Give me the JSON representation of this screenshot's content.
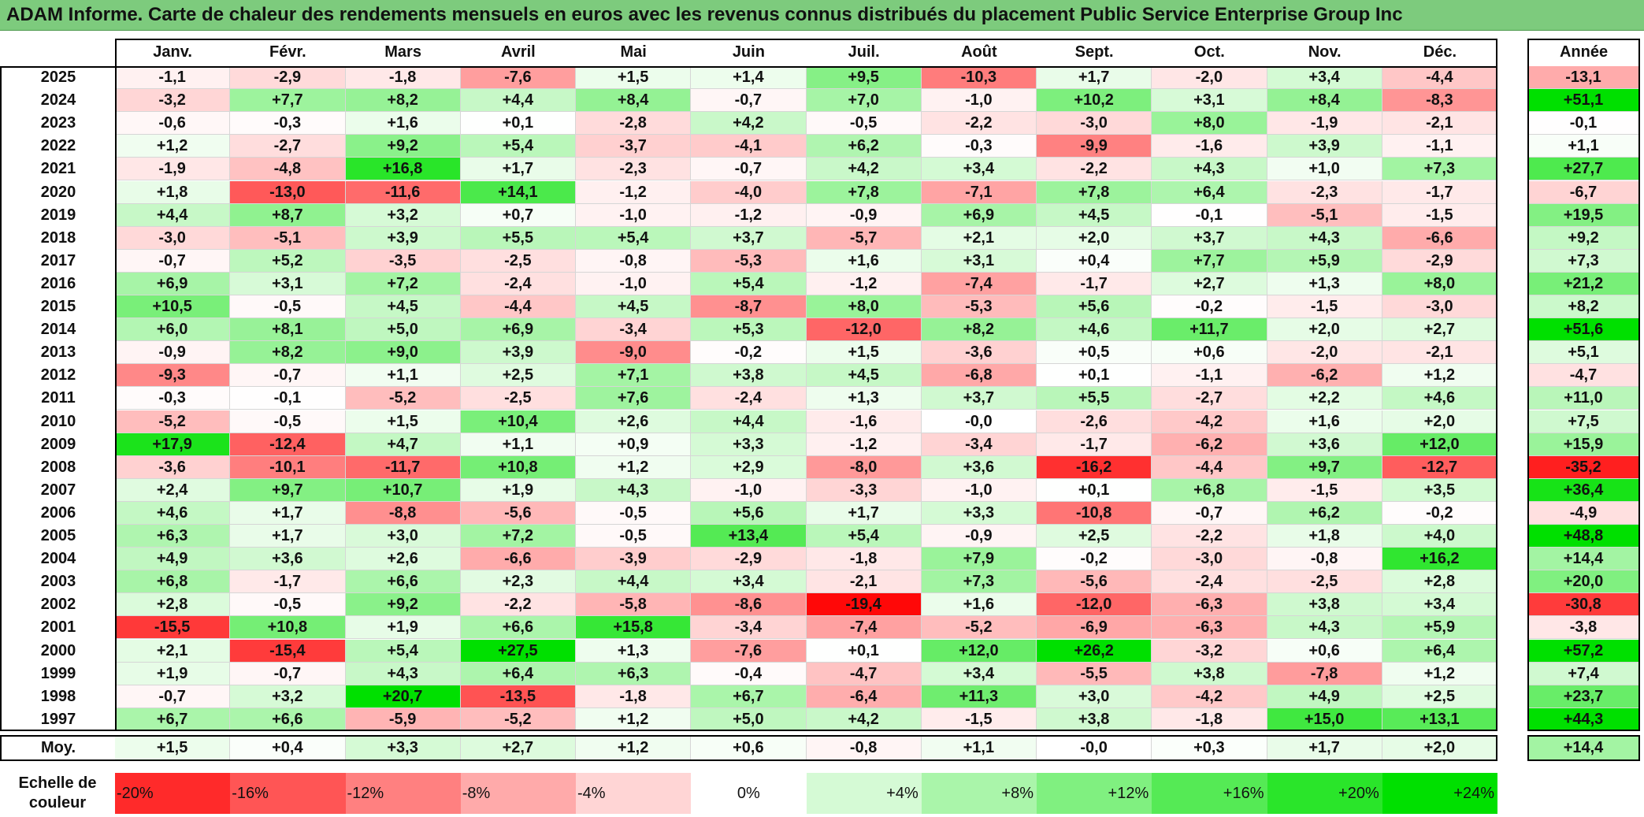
{
  "title": "ADAM Informe. Carte de chaleur des rendements mensuels en euros avec les revenus connus distribués du placement Public Service Enterprise Group Inc",
  "colors": {
    "title_bg": "#7dcb7d",
    "max_green": "#00e000",
    "max_red": "#ff0000",
    "neutral": "#ffffff"
  },
  "chart_data": {
    "type": "heatmap",
    "title": "ADAM Informe. Carte de chaleur des rendements mensuels en euros avec les revenus connus distribués du placement Public Service Enterprise Group Inc",
    "months": [
      "Janv.",
      "Févr.",
      "Mars",
      "Avril",
      "Mai",
      "Juin",
      "Juil.",
      "Août",
      "Sept.",
      "Oct.",
      "Nov.",
      "Déc."
    ],
    "year_header": "Année",
    "rows": [
      {
        "year": "2025",
        "values": [
          "-1,1",
          "-2,9",
          "-1,8",
          "-7,6",
          "+1,5",
          "+1,4",
          "+9,5",
          "-10,3",
          "+1,7",
          "-2,0",
          "+3,4",
          "-4,4"
        ],
        "annual": "-13,1"
      },
      {
        "year": "2024",
        "values": [
          "-3,2",
          "+7,7",
          "+8,2",
          "+4,4",
          "+8,4",
          "-0,7",
          "+7,0",
          "-1,0",
          "+10,2",
          "+3,1",
          "+8,4",
          "-8,3"
        ],
        "annual": "+51,1"
      },
      {
        "year": "2023",
        "values": [
          "-0,6",
          "-0,3",
          "+1,6",
          "+0,1",
          "-2,8",
          "+4,2",
          "-0,5",
          "-2,2",
          "-3,0",
          "+8,0",
          "-1,9",
          "-2,1"
        ],
        "annual": "-0,1"
      },
      {
        "year": "2022",
        "values": [
          "+1,2",
          "-2,7",
          "+9,2",
          "+5,4",
          "-3,7",
          "-4,1",
          "+6,2",
          "-0,3",
          "-9,9",
          "-1,6",
          "+3,9",
          "-1,1"
        ],
        "annual": "+1,1"
      },
      {
        "year": "2021",
        "values": [
          "-1,9",
          "-4,8",
          "+16,8",
          "+1,7",
          "-2,3",
          "-0,7",
          "+4,2",
          "+3,4",
          "-2,2",
          "+4,3",
          "+1,0",
          "+7,3"
        ],
        "annual": "+27,7"
      },
      {
        "year": "2020",
        "values": [
          "+1,8",
          "-13,0",
          "-11,6",
          "+14,1",
          "-1,2",
          "-4,0",
          "+7,8",
          "-7,1",
          "+7,8",
          "+6,4",
          "-2,3",
          "-1,7"
        ],
        "annual": "-6,7"
      },
      {
        "year": "2019",
        "values": [
          "+4,4",
          "+8,7",
          "+3,2",
          "+0,7",
          "-1,0",
          "-1,2",
          "-0,9",
          "+6,9",
          "+4,5",
          "-0,1",
          "-5,1",
          "-1,5"
        ],
        "annual": "+19,5"
      },
      {
        "year": "2018",
        "values": [
          "-3,0",
          "-5,1",
          "+3,9",
          "+5,5",
          "+5,4",
          "+3,7",
          "-5,7",
          "+2,1",
          "+2,0",
          "+3,7",
          "+4,3",
          "-6,6"
        ],
        "annual": "+9,2"
      },
      {
        "year": "2017",
        "values": [
          "-0,7",
          "+5,2",
          "-3,5",
          "-2,5",
          "-0,8",
          "-5,3",
          "+1,6",
          "+3,1",
          "+0,4",
          "+7,7",
          "+5,9",
          "-2,9"
        ],
        "annual": "+7,3"
      },
      {
        "year": "2016",
        "values": [
          "+6,9",
          "+3,1",
          "+7,2",
          "-2,4",
          "-1,0",
          "+5,4",
          "-1,2",
          "-7,4",
          "-1,7",
          "+2,7",
          "+1,3",
          "+8,0"
        ],
        "annual": "+21,2"
      },
      {
        "year": "2015",
        "values": [
          "+10,5",
          "-0,5",
          "+4,5",
          "-4,4",
          "+4,5",
          "-8,7",
          "+8,0",
          "-5,3",
          "+5,6",
          "-0,2",
          "-1,5",
          "-3,0"
        ],
        "annual": "+8,2"
      },
      {
        "year": "2014",
        "values": [
          "+6,0",
          "+8,1",
          "+5,0",
          "+6,9",
          "-3,4",
          "+5,3",
          "-12,0",
          "+8,2",
          "+4,6",
          "+11,7",
          "+2,0",
          "+2,7"
        ],
        "annual": "+51,6"
      },
      {
        "year": "2013",
        "values": [
          "-0,9",
          "+8,2",
          "+9,0",
          "+3,9",
          "-9,0",
          "-0,2",
          "+1,5",
          "-3,6",
          "+0,5",
          "+0,6",
          "-2,0",
          "-2,1"
        ],
        "annual": "+5,1"
      },
      {
        "year": "2012",
        "values": [
          "-9,3",
          "-0,7",
          "+1,1",
          "+2,5",
          "+7,1",
          "+3,8",
          "+4,5",
          "-6,8",
          "+0,1",
          "-1,1",
          "-6,2",
          "+1,2"
        ],
        "annual": "-4,7"
      },
      {
        "year": "2011",
        "values": [
          "-0,3",
          "-0,1",
          "-5,2",
          "-2,5",
          "+7,6",
          "-2,4",
          "+1,3",
          "+3,7",
          "+5,5",
          "-2,7",
          "+2,2",
          "+4,6"
        ],
        "annual": "+11,0"
      },
      {
        "year": "2010",
        "values": [
          "-5,2",
          "-0,5",
          "+1,5",
          "+10,4",
          "+2,6",
          "+4,4",
          "-1,6",
          "-0,0",
          "-2,6",
          "-4,2",
          "+1,6",
          "+2,0"
        ],
        "annual": "+7,5"
      },
      {
        "year": "2009",
        "values": [
          "+17,9",
          "-12,4",
          "+4,7",
          "+1,1",
          "+0,9",
          "+3,3",
          "-1,2",
          "-3,4",
          "-1,7",
          "-6,2",
          "+3,6",
          "+12,0"
        ],
        "annual": "+15,9"
      },
      {
        "year": "2008",
        "values": [
          "-3,6",
          "-10,1",
          "-11,7",
          "+10,8",
          "+1,2",
          "+2,9",
          "-8,0",
          "+3,6",
          "-16,2",
          "-4,4",
          "+9,7",
          "-12,7"
        ],
        "annual": "-35,2"
      },
      {
        "year": "2007",
        "values": [
          "+2,4",
          "+9,7",
          "+10,7",
          "+1,9",
          "+4,3",
          "-1,0",
          "-3,3",
          "-1,0",
          "+0,1",
          "+6,8",
          "-1,5",
          "+3,5"
        ],
        "annual": "+36,4"
      },
      {
        "year": "2006",
        "values": [
          "+4,6",
          "+1,7",
          "-8,8",
          "-5,6",
          "-0,5",
          "+5,6",
          "+1,7",
          "+3,3",
          "-10,8",
          "-0,7",
          "+6,2",
          "-0,2"
        ],
        "annual": "-4,9"
      },
      {
        "year": "2005",
        "values": [
          "+6,3",
          "+1,7",
          "+3,0",
          "+7,2",
          "-0,5",
          "+13,4",
          "+5,4",
          "-0,9",
          "+2,5",
          "-2,2",
          "+1,8",
          "+4,0"
        ],
        "annual": "+48,8"
      },
      {
        "year": "2004",
        "values": [
          "+4,9",
          "+3,6",
          "+2,6",
          "-6,6",
          "-3,9",
          "-2,9",
          "-1,8",
          "+7,9",
          "-0,2",
          "-3,0",
          "-0,8",
          "+16,2"
        ],
        "annual": "+14,4"
      },
      {
        "year": "2003",
        "values": [
          "+6,8",
          "-1,7",
          "+6,6",
          "+2,3",
          "+4,4",
          "+3,4",
          "-2,1",
          "+7,3",
          "-5,6",
          "-2,4",
          "-2,5",
          "+2,8"
        ],
        "annual": "+20,0"
      },
      {
        "year": "2002",
        "values": [
          "+2,8",
          "-0,5",
          "+9,2",
          "-2,2",
          "-5,8",
          "-8,6",
          "-19,4",
          "+1,6",
          "-12,0",
          "-6,3",
          "+3,8",
          "+3,4"
        ],
        "annual": "-30,8"
      },
      {
        "year": "2001",
        "values": [
          "-15,5",
          "+10,8",
          "+1,9",
          "+6,6",
          "+15,8",
          "-3,4",
          "-7,4",
          "-5,2",
          "-6,9",
          "-6,3",
          "+4,3",
          "+5,9"
        ],
        "annual": "-3,8"
      },
      {
        "year": "2000",
        "values": [
          "+2,1",
          "-15,4",
          "+5,4",
          "+27,5",
          "+1,3",
          "-7,6",
          "+0,1",
          "+12,0",
          "+26,2",
          "-3,2",
          "+0,6",
          "+6,4"
        ],
        "annual": "+57,2"
      },
      {
        "year": "1999",
        "values": [
          "+1,9",
          "-0,7",
          "+4,3",
          "+6,4",
          "+6,3",
          "-0,4",
          "-4,7",
          "+3,4",
          "-5,5",
          "+3,8",
          "-7,8",
          "+1,2"
        ],
        "annual": "+7,4"
      },
      {
        "year": "1998",
        "values": [
          "-0,7",
          "+3,2",
          "+20,7",
          "-13,5",
          "-1,8",
          "+6,7",
          "-6,4",
          "+11,3",
          "+3,0",
          "-4,2",
          "+4,9",
          "+2,5"
        ],
        "annual": "+23,7"
      },
      {
        "year": "1997",
        "values": [
          "+6,7",
          "+6,6",
          "-5,9",
          "-5,2",
          "+1,2",
          "+5,0",
          "+4,2",
          "-1,5",
          "+3,8",
          "-1,8",
          "+15,0",
          "+13,1"
        ],
        "annual": "+44,3"
      }
    ],
    "average": {
      "label": "Moy.",
      "values": [
        "+1,5",
        "+0,4",
        "+3,3",
        "+2,7",
        "+1,2",
        "+0,6",
        "-0,8",
        "+1,1",
        "-0,0",
        "+0,3",
        "+1,7",
        "+2,0"
      ],
      "annual": "+14,4"
    },
    "legend": {
      "label": "Echelle de couleur",
      "stops": [
        "-20%",
        "-16%",
        "-12%",
        "-8%",
        "-4%",
        "0%",
        "+4%",
        "+8%",
        "+12%",
        "+16%",
        "+20%",
        "+24%"
      ],
      "stop_values": [
        -20,
        -16,
        -12,
        -8,
        -4,
        0,
        4,
        8,
        12,
        16,
        20,
        24
      ]
    }
  }
}
